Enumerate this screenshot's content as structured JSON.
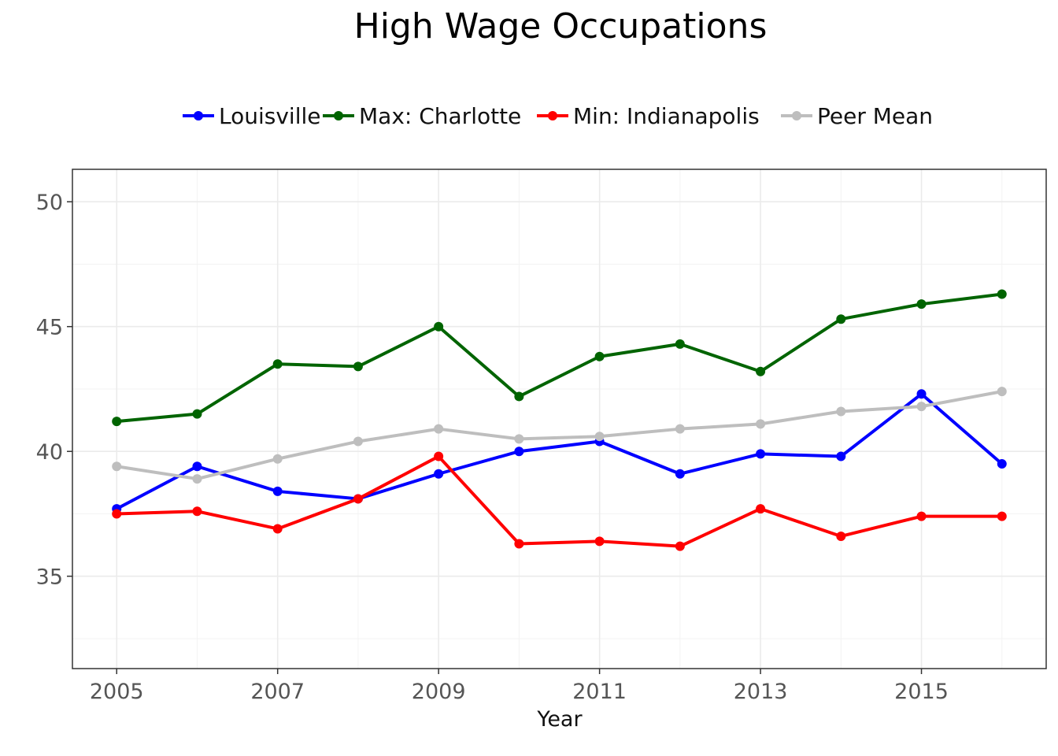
{
  "chart_data": {
    "type": "line",
    "title": "High Wage Occupations",
    "xlabel": "Year",
    "ylabel": "",
    "x": [
      2005,
      2006,
      2007,
      2008,
      2009,
      2010,
      2011,
      2012,
      2013,
      2014,
      2015,
      2016
    ],
    "xticks": [
      2005,
      2007,
      2009,
      2011,
      2013,
      2015
    ],
    "yticks": [
      35,
      40,
      45,
      50
    ],
    "xlim": [
      2004.45,
      2016.55
    ],
    "ylim": [
      31.3,
      51.3
    ],
    "grid": true,
    "legend_position": "top",
    "series": [
      {
        "name": "Louisville",
        "color": "#0000ff",
        "values": [
          37.7,
          39.4,
          38.4,
          38.1,
          39.1,
          40.0,
          40.4,
          39.1,
          39.9,
          39.8,
          42.3,
          39.5
        ]
      },
      {
        "name": "Max: Charlotte",
        "color": "#006400",
        "values": [
          41.2,
          41.5,
          43.5,
          43.4,
          45.0,
          42.2,
          43.8,
          44.3,
          43.2,
          45.3,
          45.9,
          46.3
        ]
      },
      {
        "name": "Min: Indianapolis",
        "color": "#ff0000",
        "values": [
          37.5,
          37.6,
          36.9,
          38.1,
          39.8,
          36.3,
          36.4,
          36.2,
          37.7,
          36.6,
          37.4,
          37.4
        ]
      },
      {
        "name": "Peer Mean",
        "color": "#bebebe",
        "values": [
          39.4,
          38.9,
          39.7,
          40.4,
          40.9,
          40.5,
          40.6,
          40.9,
          41.1,
          41.6,
          41.8,
          42.4
        ]
      }
    ]
  }
}
